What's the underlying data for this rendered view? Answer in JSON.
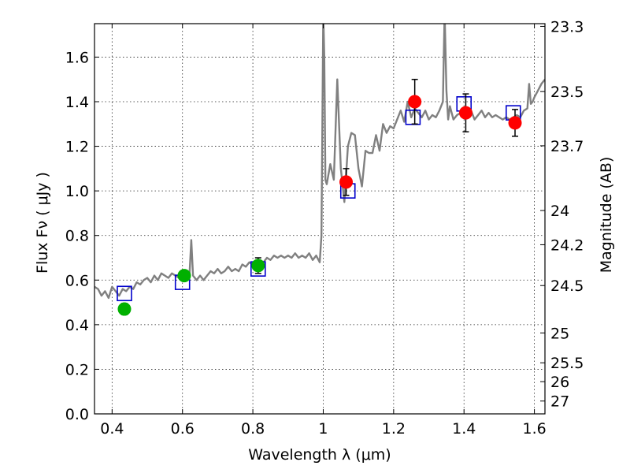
{
  "chart_data": {
    "type": "line",
    "title": "",
    "xlabel": "Wavelength  λ (μm)",
    "ylabel": "Flux  Fν  ( μJy )",
    "ylabel_right": "Magnitude (AB)",
    "xlim": [
      0.35,
      1.63
    ],
    "ylim": [
      0.0,
      1.75
    ],
    "grid": true,
    "x_ticks": [
      {
        "value": 0.4,
        "label": "0.4"
      },
      {
        "value": 0.6,
        "label": "0.6"
      },
      {
        "value": 0.8,
        "label": "0.8"
      },
      {
        "value": 1.0,
        "label": "1"
      },
      {
        "value": 1.2,
        "label": "1.2"
      },
      {
        "value": 1.4,
        "label": "1.4"
      },
      {
        "value": 1.6,
        "label": "1.6"
      }
    ],
    "y_ticks": [
      {
        "value": 0.0,
        "label": "0.0"
      },
      {
        "value": 0.2,
        "label": "0.2"
      },
      {
        "value": 0.4,
        "label": "0.4"
      },
      {
        "value": 0.6,
        "label": "0.6"
      },
      {
        "value": 0.8,
        "label": "0.8"
      },
      {
        "value": 1.0,
        "label": "1.0"
      },
      {
        "value": 1.2,
        "label": "1.2"
      },
      {
        "value": 1.4,
        "label": "1.4"
      },
      {
        "value": 1.6,
        "label": "1.6"
      }
    ],
    "mag_ticks": [
      {
        "value": 23.3,
        "label": "23.3"
      },
      {
        "value": 23.5,
        "label": "23.5"
      },
      {
        "value": 23.7,
        "label": "23.7"
      },
      {
        "value": 24.0,
        "label": "24"
      },
      {
        "value": 24.2,
        "label": "24.2"
      },
      {
        "value": 24.5,
        "label": "24.5"
      },
      {
        "value": 25.0,
        "label": "25"
      },
      {
        "value": 25.5,
        "label": "25.5"
      },
      {
        "value": 26.0,
        "label": "26"
      },
      {
        "value": 27.0,
        "label": "27"
      }
    ],
    "series": [
      {
        "kind": "model_spectrum",
        "color": "#808080",
        "x": [
          0.35,
          0.36,
          0.37,
          0.38,
          0.39,
          0.4,
          0.41,
          0.42,
          0.43,
          0.44,
          0.45,
          0.46,
          0.47,
          0.48,
          0.49,
          0.5,
          0.51,
          0.52,
          0.53,
          0.54,
          0.55,
          0.56,
          0.57,
          0.58,
          0.59,
          0.6,
          0.61,
          0.62,
          0.625,
          0.63,
          0.635,
          0.64,
          0.65,
          0.66,
          0.67,
          0.68,
          0.69,
          0.7,
          0.71,
          0.72,
          0.73,
          0.74,
          0.75,
          0.76,
          0.77,
          0.78,
          0.79,
          0.8,
          0.81,
          0.82,
          0.83,
          0.84,
          0.85,
          0.86,
          0.87,
          0.88,
          0.89,
          0.9,
          0.91,
          0.92,
          0.93,
          0.94,
          0.95,
          0.96,
          0.97,
          0.98,
          0.99,
          0.995,
          0.998,
          1.0,
          1.003,
          1.006,
          1.01,
          1.02,
          1.03,
          1.04,
          1.05,
          1.06,
          1.07,
          1.08,
          1.09,
          1.1,
          1.11,
          1.12,
          1.13,
          1.14,
          1.15,
          1.16,
          1.17,
          1.18,
          1.19,
          1.2,
          1.21,
          1.22,
          1.23,
          1.24,
          1.25,
          1.26,
          1.27,
          1.28,
          1.29,
          1.3,
          1.31,
          1.32,
          1.33,
          1.34,
          1.345,
          1.35,
          1.355,
          1.36,
          1.37,
          1.38,
          1.39,
          1.4,
          1.41,
          1.42,
          1.43,
          1.44,
          1.45,
          1.46,
          1.47,
          1.48,
          1.49,
          1.5,
          1.51,
          1.52,
          1.53,
          1.54,
          1.55,
          1.56,
          1.57,
          1.58,
          1.585,
          1.59,
          1.595,
          1.6,
          1.61,
          1.62,
          1.63
        ],
        "y": [
          0.57,
          0.56,
          0.53,
          0.55,
          0.52,
          0.57,
          0.55,
          0.53,
          0.56,
          0.55,
          0.57,
          0.56,
          0.59,
          0.58,
          0.6,
          0.61,
          0.59,
          0.62,
          0.6,
          0.63,
          0.62,
          0.61,
          0.63,
          0.62,
          0.61,
          0.6,
          0.62,
          0.63,
          0.78,
          0.62,
          0.61,
          0.6,
          0.62,
          0.6,
          0.62,
          0.64,
          0.63,
          0.65,
          0.63,
          0.64,
          0.66,
          0.64,
          0.65,
          0.64,
          0.67,
          0.66,
          0.68,
          0.67,
          0.68,
          0.69,
          0.68,
          0.7,
          0.69,
          0.71,
          0.7,
          0.71,
          0.7,
          0.71,
          0.7,
          0.72,
          0.7,
          0.71,
          0.7,
          0.72,
          0.69,
          0.71,
          0.68,
          0.8,
          1.4,
          1.8,
          1.6,
          1.05,
          1.03,
          1.12,
          1.05,
          1.5,
          1.1,
          0.95,
          1.2,
          1.26,
          1.25,
          1.1,
          1.02,
          1.18,
          1.17,
          1.17,
          1.25,
          1.18,
          1.3,
          1.26,
          1.29,
          1.28,
          1.32,
          1.36,
          1.31,
          1.4,
          1.33,
          1.37,
          1.35,
          1.33,
          1.36,
          1.32,
          1.34,
          1.33,
          1.36,
          1.4,
          1.8,
          1.45,
          1.32,
          1.38,
          1.32,
          1.34,
          1.35,
          1.35,
          1.34,
          1.36,
          1.32,
          1.34,
          1.36,
          1.33,
          1.35,
          1.33,
          1.34,
          1.33,
          1.32,
          1.33,
          1.32,
          1.33,
          1.34,
          1.33,
          1.36,
          1.37,
          1.48,
          1.39,
          1.4,
          1.42,
          1.45,
          1.48,
          1.5
        ]
      },
      {
        "kind": "model_bandpass",
        "marker": "square",
        "color": "#0000cc",
        "x": [
          0.435,
          0.6,
          0.815,
          1.07,
          1.255,
          1.4,
          1.54
        ],
        "y": [
          0.54,
          0.59,
          0.65,
          1.0,
          1.33,
          1.39,
          1.35
        ]
      },
      {
        "kind": "observed",
        "marker": "circle",
        "color": "#00b000",
        "x": [
          0.435,
          0.605,
          0.815
        ],
        "y": [
          0.47,
          0.62,
          0.665
        ],
        "err": [
          0.025,
          0.02,
          0.035
        ]
      },
      {
        "kind": "observed",
        "marker": "circle",
        "color": "#ff0000",
        "x": [
          1.065,
          1.26,
          1.405,
          1.545
        ],
        "y": [
          1.04,
          1.4,
          1.35,
          1.305
        ],
        "err": [
          0.06,
          0.1,
          0.085,
          0.06
        ]
      }
    ]
  }
}
